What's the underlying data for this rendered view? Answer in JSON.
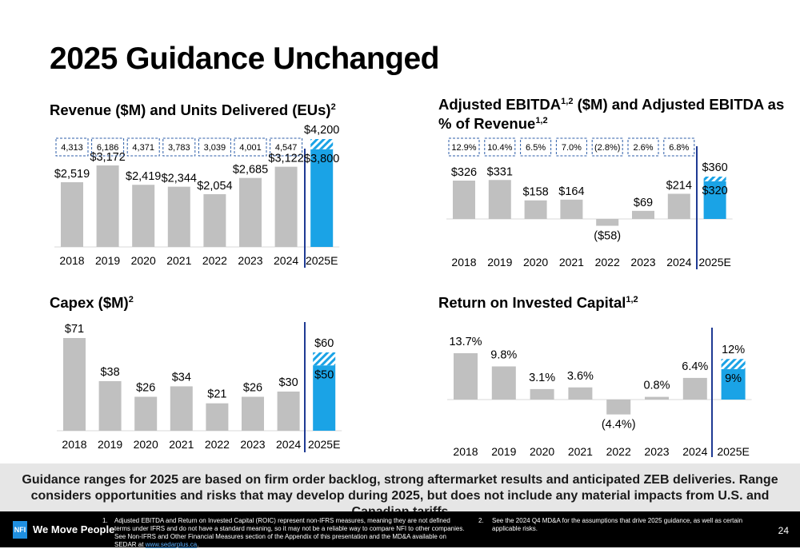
{
  "page": {
    "title": "2025 Guidance Unchanged",
    "banner": "Guidance ranges for 2025 are based on firm order backlog, strong aftermarket results and anticipated ZEB deliveries. Range considers opportunities and risks that may develop during 2025, but does not include any material impacts from U.S. and Canadian tariffs",
    "page_number": "24"
  },
  "footer": {
    "logo_mark": "NFI",
    "logo_text": "We Move People",
    "footnote1_num": "1.",
    "footnote1_text": "Adjusted EBITDA and Return on Invested Capital (ROIC) represent non-IFRS measures, meaning they are not defined terms under IFRS and do not have a standard meaning, so it may not be a reliable way to compare NFI to other companies. See Non-IFRS and Other Financial Measures section of the Appendix of this presentation and the MD&A available on SEDAR at",
    "footnote1_link": "www.sedarplus.ca",
    "footnote1_end": ".",
    "footnote2_num": "2.",
    "footnote2_text": "See the 2024 Q4 MD&A for the assumptions that drive 2025 guidance, as well as certain applicable risks."
  },
  "colors": {
    "bar": "#c0c0c0",
    "guidance": "#1aa3e6",
    "divider": "#1f3a93",
    "box_border": "#2e5ea8"
  },
  "chart_data": [
    {
      "id": "revenue",
      "type": "bar",
      "title": "Revenue ($M) and Units Delivered (EUs)",
      "title_sup": "2",
      "categories": [
        "2018",
        "2019",
        "2020",
        "2021",
        "2022",
        "2023",
        "2024",
        "2025E"
      ],
      "values": [
        2519,
        3172,
        2419,
        2344,
        2054,
        2685,
        3122,
        3800
      ],
      "labels": [
        "$2,519",
        "$3,172",
        "$2,419",
        "$2,344",
        "$2,054",
        "$2,685",
        "$3,122",
        "$3,800"
      ],
      "guidance_high": 4200,
      "guidance_high_label": "$4,200",
      "box_labels": [
        "4,313",
        "6,186",
        "4,371",
        "3,783",
        "3,039",
        "4,001",
        "4,547"
      ],
      "ylim": [
        0,
        4200
      ]
    },
    {
      "id": "ebitda",
      "type": "bar",
      "title": "Adjusted EBITDA",
      "title_sup": "1,2",
      "title_rest": " ($M) and Adjusted EBITDA as",
      "title_line2": "% of Revenue",
      "title_line2_sup": "1,2",
      "categories": [
        "2018",
        "2019",
        "2020",
        "2021",
        "2022",
        "2023",
        "2024",
        "2025E"
      ],
      "values": [
        326,
        331,
        158,
        164,
        -58,
        69,
        214,
        320
      ],
      "labels": [
        "$326",
        "$331",
        "$158",
        "$164",
        "($58)",
        "$69",
        "$214",
        "$320"
      ],
      "guidance_high": 360,
      "guidance_high_label": "$360",
      "box_labels": [
        "12.9%",
        "10.4%",
        "6.5%",
        "7.0%",
        "(2.8%)",
        "2.6%",
        "6.8%"
      ],
      "ylim": [
        -58,
        360
      ]
    },
    {
      "id": "capex",
      "type": "bar",
      "title": "Capex ($M)",
      "title_sup": "2",
      "categories": [
        "2018",
        "2019",
        "2020",
        "2021",
        "2022",
        "2023",
        "2024",
        "2025E"
      ],
      "values": [
        71,
        38,
        26,
        34,
        21,
        26,
        30,
        50
      ],
      "labels": [
        "$71",
        "$38",
        "$26",
        "$34",
        "$21",
        "$26",
        "$30",
        "$50"
      ],
      "guidance_high": 60,
      "guidance_high_label": "$60",
      "ylim": [
        0,
        71
      ]
    },
    {
      "id": "roic",
      "type": "bar",
      "title": "Return on Invested Capital",
      "title_sup": "1,2",
      "categories": [
        "2018",
        "2019",
        "2020",
        "2021",
        "2022",
        "2023",
        "2024",
        "2025E"
      ],
      "values": [
        13.7,
        9.8,
        3.1,
        3.6,
        -4.4,
        0.8,
        6.4,
        9
      ],
      "labels": [
        "13.7%",
        "9.8%",
        "3.1%",
        "3.6%",
        "(4.4%)",
        "0.8%",
        "6.4%",
        "9%"
      ],
      "guidance_high": 12,
      "guidance_high_label": "12%",
      "ylim": [
        -4.4,
        13.7
      ]
    }
  ]
}
